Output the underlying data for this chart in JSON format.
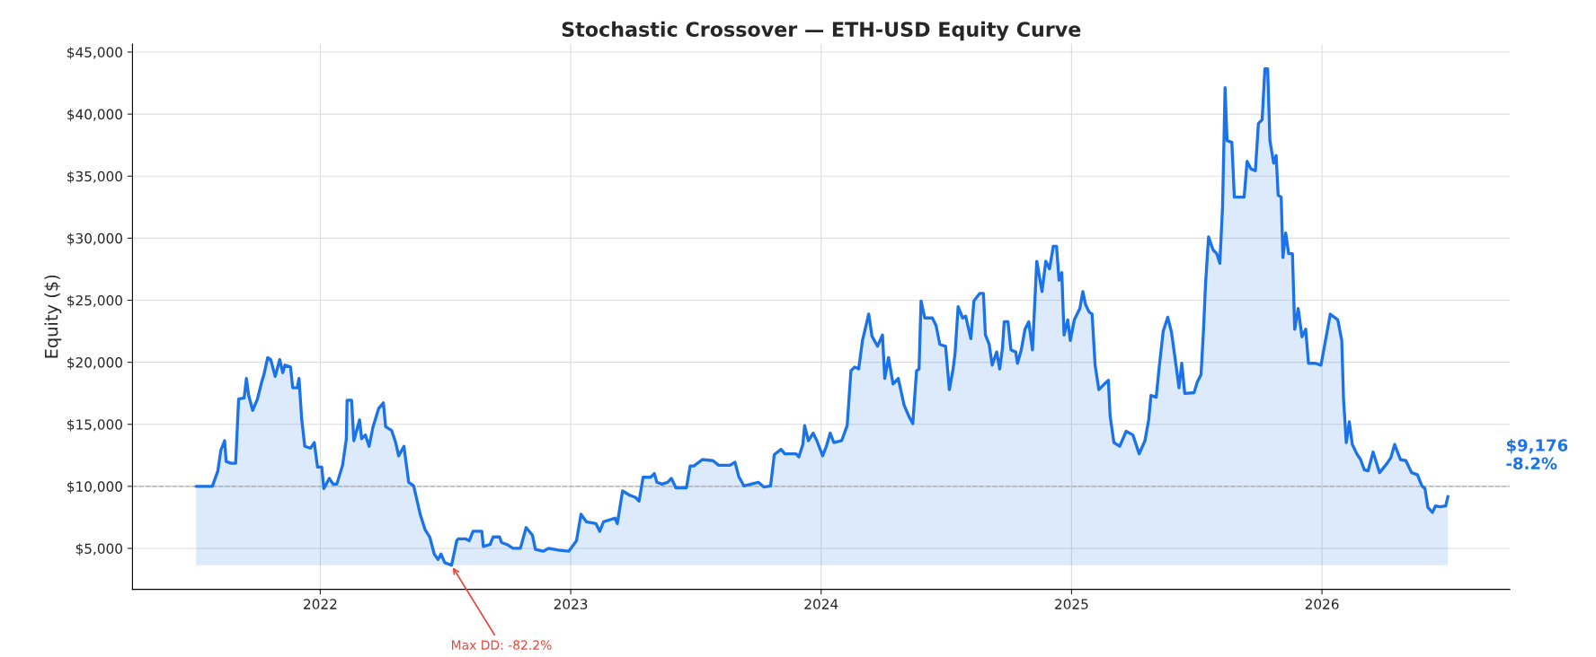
{
  "chart_data": {
    "type": "area",
    "title": "Stochastic Crossover — ETH-USD Equity Curve",
    "ylabel": "Equity ($)",
    "x": [
      2021.504,
      2021.569,
      2021.591,
      2021.603,
      2021.618,
      2021.624,
      2021.643,
      2021.662,
      2021.674,
      2021.696,
      2021.705,
      2021.714,
      2021.73,
      2021.749,
      2021.766,
      2021.775,
      2021.79,
      2021.802,
      2021.82,
      2021.838,
      2021.85,
      2021.859,
      2021.881,
      2021.89,
      2021.908,
      2021.915,
      2021.926,
      2021.938,
      2021.961,
      2021.976,
      2021.989,
      2022.006,
      2022.014,
      2022.036,
      2022.051,
      2022.066,
      2022.089,
      2022.104,
      2022.107,
      2022.125,
      2022.134,
      2022.157,
      2022.165,
      2022.18,
      2022.195,
      2022.21,
      2022.233,
      2022.252,
      2022.261,
      2022.285,
      2022.301,
      2022.313,
      2022.334,
      2022.353,
      2022.373,
      2022.399,
      2022.418,
      2022.437,
      2022.455,
      2022.47,
      2022.482,
      2022.497,
      2022.524,
      2022.545,
      2022.551,
      2022.58,
      2022.595,
      2022.61,
      2022.645,
      2022.651,
      2022.678,
      2022.69,
      2022.716,
      2022.724,
      2022.746,
      2022.769,
      2022.799,
      2022.822,
      2022.847,
      2022.859,
      2022.89,
      2022.912,
      2022.95,
      2022.992,
      2023.023,
      2023.041,
      2023.063,
      2023.101,
      2023.116,
      2023.131,
      2023.177,
      2023.186,
      2023.207,
      2023.237,
      2023.258,
      2023.273,
      2023.289,
      2023.319,
      2023.334,
      2023.344,
      2023.364,
      2023.387,
      2023.402,
      2023.42,
      2023.462,
      2023.477,
      2023.492,
      2023.526,
      2023.568,
      2023.591,
      2023.636,
      2023.656,
      2023.671,
      2023.692,
      2023.749,
      2023.772,
      2023.798,
      2023.813,
      2023.84,
      2023.855,
      2023.9,
      2023.911,
      2023.927,
      2023.934,
      2023.949,
      2023.968,
      2023.983,
      2024.006,
      2024.021,
      2024.036,
      2024.051,
      2024.082,
      2024.104,
      2024.119,
      2024.134,
      2024.15,
      2024.165,
      2024.19,
      2024.203,
      2024.225,
      2024.245,
      2024.254,
      2024.269,
      2024.287,
      2024.308,
      2024.331,
      2024.35,
      2024.366,
      2024.381,
      2024.391,
      2024.399,
      2024.414,
      2024.444,
      2024.459,
      2024.474,
      2024.497,
      2024.512,
      2024.527,
      2024.535,
      2024.547,
      2024.565,
      2024.577,
      2024.598,
      2024.61,
      2024.633,
      2024.648,
      2024.656,
      2024.671,
      2024.683,
      2024.701,
      2024.713,
      2024.724,
      2024.731,
      2024.746,
      2024.758,
      2024.777,
      2024.784,
      2024.799,
      2024.814,
      2024.829,
      2024.844,
      2024.861,
      2024.882,
      2024.897,
      2024.912,
      2024.927,
      2024.94,
      2024.95,
      2024.961,
      2024.97,
      2024.985,
      2024.995,
      2025.011,
      2025.033,
      2025.045,
      2025.056,
      2025.071,
      2025.082,
      2025.094,
      2025.109,
      2025.131,
      2025.147,
      2025.154,
      2025.169,
      2025.192,
      2025.218,
      2025.245,
      2025.27,
      2025.293,
      2025.308,
      2025.317,
      2025.338,
      2025.35,
      2025.366,
      2025.384,
      2025.399,
      2025.414,
      2025.429,
      2025.44,
      2025.452,
      2025.489,
      2025.502,
      2025.517,
      2025.527,
      2025.535,
      2025.547,
      2025.565,
      2025.58,
      2025.592,
      2025.603,
      2025.613,
      2025.621,
      2025.64,
      2025.65,
      2025.689,
      2025.701,
      2025.716,
      2025.734,
      2025.746,
      2025.761,
      2025.772,
      2025.783,
      2025.792,
      2025.807,
      2025.817,
      2025.825,
      2025.837,
      2025.844,
      2025.855,
      2025.867,
      2025.882,
      2025.891,
      2025.905,
      2025.92,
      2025.935,
      2025.946,
      2025.973,
      2025.996,
      2026.018,
      2026.033,
      2026.063,
      2026.079,
      2026.086,
      2026.097,
      2026.109,
      2026.121,
      2026.139,
      2026.154,
      2026.169,
      2026.184,
      2026.204,
      2026.23,
      2026.26,
      2026.275,
      2026.29,
      2026.313,
      2026.335,
      2026.358,
      2026.381,
      2026.399,
      2026.411,
      2026.423,
      2026.441,
      2026.453,
      2026.471,
      2026.494,
      2026.503
    ],
    "series": [
      {
        "color": "#1a73e8",
        "values": [
          10000,
          10000,
          11250,
          12920,
          13680,
          12010,
          11860,
          11860,
          17030,
          17120,
          18700,
          17330,
          16120,
          17030,
          18400,
          19010,
          20380,
          20220,
          18860,
          20220,
          19160,
          19770,
          19620,
          17940,
          17940,
          18700,
          15360,
          13230,
          13070,
          13530,
          11550,
          11550,
          9820,
          10640,
          10180,
          10180,
          11700,
          13830,
          16940,
          16940,
          13680,
          15360,
          13830,
          14140,
          13230,
          14750,
          16270,
          16730,
          14810,
          14500,
          13530,
          12460,
          13230,
          10330,
          10030,
          7750,
          6530,
          5920,
          4550,
          4100,
          4550,
          3850,
          3640,
          5620,
          5770,
          5770,
          5620,
          6380,
          6380,
          5160,
          5310,
          5920,
          5920,
          5470,
          5310,
          5010,
          5010,
          6680,
          6070,
          4920,
          4770,
          5010,
          4860,
          4770,
          5620,
          7750,
          7140,
          6990,
          6380,
          7140,
          7440,
          6990,
          9630,
          9270,
          9120,
          8810,
          10730,
          10730,
          11030,
          10330,
          10180,
          10330,
          10640,
          9880,
          9880,
          11640,
          11640,
          12160,
          12070,
          11700,
          11700,
          11950,
          10790,
          10030,
          10330,
          9940,
          10030,
          12560,
          12980,
          12620,
          12620,
          12370,
          13380,
          14900,
          13680,
          14290,
          13680,
          12460,
          13230,
          14290,
          13530,
          13680,
          14900,
          19310,
          19620,
          19460,
          21750,
          23880,
          22110,
          21290,
          22200,
          18700,
          20380,
          18250,
          18700,
          16570,
          15660,
          15050,
          19310,
          19460,
          24940,
          23570,
          23570,
          22960,
          21440,
          21290,
          17790,
          19460,
          20770,
          24480,
          23570,
          23720,
          21900,
          24940,
          25550,
          25550,
          22200,
          21440,
          19770,
          20830,
          19460,
          21140,
          23270,
          23270,
          20990,
          20830,
          19920,
          20990,
          22660,
          23270,
          20990,
          28140,
          25700,
          28140,
          27530,
          29350,
          29350,
          26610,
          27220,
          22200,
          23420,
          21750,
          23420,
          24330,
          25700,
          24640,
          24030,
          23880,
          19770,
          17790,
          18250,
          18550,
          15660,
          13530,
          13230,
          14440,
          14140,
          12620,
          13680,
          15360,
          17330,
          17180,
          19620,
          22510,
          23630,
          22420,
          20220,
          17940,
          19920,
          17490,
          17550,
          18400,
          19010,
          22660,
          26310,
          30110,
          29050,
          28750,
          27980,
          32550,
          42130,
          37870,
          37720,
          33310,
          33310,
          36200,
          35590,
          35440,
          39240,
          39550,
          43660,
          43660,
          37870,
          36050,
          36660,
          33460,
          33310,
          28440,
          30420,
          28750,
          28750,
          22660,
          24330,
          22050,
          22660,
          19920,
          19920,
          19770,
          22200,
          23880,
          23420,
          21750,
          17030,
          13530,
          15200,
          13380,
          12620,
          12160,
          11340,
          11250,
          12770,
          11100,
          11860,
          12310,
          13380,
          12160,
          12070,
          11100,
          10940,
          10030,
          9820,
          8300,
          7900,
          8420,
          8360,
          8420,
          9180
        ]
      }
    ],
    "xlim": [
      2021.25,
      2026.75
    ],
    "xticks": [
      2022,
      2023,
      2024,
      2025,
      2026
    ],
    "ylim": [
      1700,
      45650
    ],
    "yticks": [
      {
        "value": 5000,
        "label": "$5,000"
      },
      {
        "value": 10000,
        "label": "$10,000"
      },
      {
        "value": 15000,
        "label": "$15,000"
      },
      {
        "value": 20000,
        "label": "$20,000"
      },
      {
        "value": 25000,
        "label": "$25,000"
      },
      {
        "value": 30000,
        "label": "$30,000"
      },
      {
        "value": 35000,
        "label": "$35,000"
      },
      {
        "value": 40000,
        "label": "$40,000"
      },
      {
        "value": 45000,
        "label": "$45,000"
      }
    ],
    "grid": true,
    "ref_lines": [
      {
        "axis": "y",
        "value": 10000,
        "color": "#aaaaaa",
        "line_style": "dashed"
      }
    ],
    "annotations": [
      {
        "text": "Max DD: -82.2%",
        "x": 2022.524,
        "y": 3640
      },
      "$9,176\n-8.2%"
    ]
  }
}
